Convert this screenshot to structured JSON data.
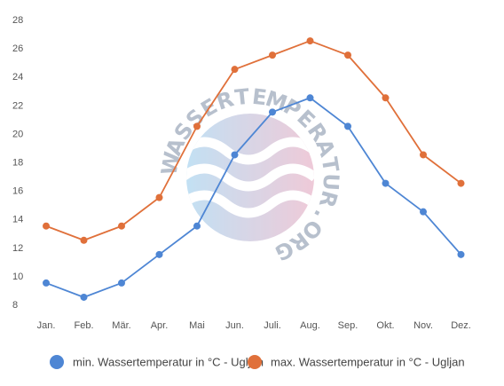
{
  "chart_data": {
    "type": "line",
    "categories": [
      "Jan.",
      "Feb.",
      "Mär.",
      "Apr.",
      "Mai",
      "Jun.",
      "Juli.",
      "Aug.",
      "Sep.",
      "Okt.",
      "Nov.",
      "Dez."
    ],
    "ylim": [
      8,
      28
    ],
    "yticks": [
      8,
      10,
      12,
      14,
      16,
      18,
      20,
      22,
      24,
      26,
      28
    ],
    "grid": false,
    "legend_position": "bottom",
    "series": [
      {
        "name": "min. Wassertemperatur in °C - Ugljan",
        "color": "#4e86d4",
        "values": [
          9.5,
          8.5,
          9.5,
          11.5,
          13.5,
          18.5,
          21.5,
          22.5,
          20.5,
          16.5,
          14.5,
          11.5
        ]
      },
      {
        "name": "max. Wassertemperatur in °C - Ugljan",
        "color": "#e0703a",
        "values": [
          13.5,
          12.5,
          13.5,
          15.5,
          20.5,
          24.5,
          25.5,
          26.5,
          25.5,
          22.5,
          18.5,
          16.5
        ]
      }
    ]
  },
  "watermark": {
    "text": "WASSERTEMPERATUR.ORG",
    "colors": [
      "#a9d4ef",
      "#e8b4c8"
    ]
  }
}
